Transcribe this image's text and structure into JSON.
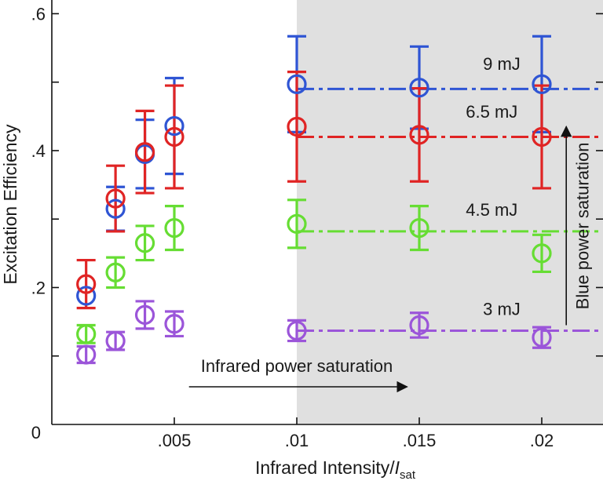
{
  "chart_data": {
    "type": "scatter",
    "title": "",
    "xlabel": "Infrared Intensity/",
    "xlabel_symbol": "I",
    "xlabel_subscript": "sat",
    "ylabel": "Excitation Efficiency",
    "xlim": [
      0,
      0.0225
    ],
    "ylim": [
      0,
      0.62
    ],
    "x_ticks": [
      {
        "value": 0,
        "label": "0"
      },
      {
        "value": 0.005,
        "label": ".005"
      },
      {
        "value": 0.01,
        "label": ".01"
      },
      {
        "value": 0.015,
        "label": ".015"
      },
      {
        "value": 0.02,
        "label": ".02"
      }
    ],
    "y_ticks": [
      {
        "value": 0.1,
        "label": ""
      },
      {
        "value": 0.2,
        "label": ".2"
      },
      {
        "value": 0.3,
        "label": ""
      },
      {
        "value": 0.4,
        "label": ".4"
      },
      {
        "value": 0.5,
        "label": ""
      },
      {
        "value": 0.6,
        "label": ".6"
      }
    ],
    "shaded_region": {
      "x_start": 0.01,
      "x_end": 0.0225,
      "color": "#e0e0e0"
    },
    "series": [
      {
        "name": "9 mJ",
        "color": "#2f55d4",
        "plateau": 0.49,
        "points": [
          {
            "x": 0.0014,
            "y": 0.188,
            "err": 0.0
          },
          {
            "x": 0.0026,
            "y": 0.315,
            "err": 0.032
          },
          {
            "x": 0.0038,
            "y": 0.395,
            "err": 0.05
          },
          {
            "x": 0.005,
            "y": 0.436,
            "err": 0.07
          },
          {
            "x": 0.01,
            "y": 0.497,
            "err": 0.07
          },
          {
            "x": 0.015,
            "y": 0.492,
            "err": 0.06
          },
          {
            "x": 0.02,
            "y": 0.497,
            "err": 0.07
          }
        ]
      },
      {
        "name": "6.5 mJ",
        "color": "#e02424",
        "plateau": 0.42,
        "points": [
          {
            "x": 0.0014,
            "y": 0.205,
            "err": 0.035
          },
          {
            "x": 0.0026,
            "y": 0.33,
            "err": 0.048
          },
          {
            "x": 0.0038,
            "y": 0.398,
            "err": 0.06
          },
          {
            "x": 0.005,
            "y": 0.42,
            "err": 0.075
          },
          {
            "x": 0.01,
            "y": 0.435,
            "err": 0.08
          },
          {
            "x": 0.015,
            "y": 0.423,
            "err": 0.068
          },
          {
            "x": 0.02,
            "y": 0.42,
            "err": 0.075
          }
        ]
      },
      {
        "name": "4.5 mJ",
        "color": "#66dd33",
        "plateau": 0.282,
        "points": [
          {
            "x": 0.0014,
            "y": 0.132,
            "err": 0.013
          },
          {
            "x": 0.0026,
            "y": 0.222,
            "err": 0.022
          },
          {
            "x": 0.0038,
            "y": 0.265,
            "err": 0.025
          },
          {
            "x": 0.005,
            "y": 0.287,
            "err": 0.032
          },
          {
            "x": 0.01,
            "y": 0.293,
            "err": 0.035
          },
          {
            "x": 0.015,
            "y": 0.287,
            "err": 0.032
          },
          {
            "x": 0.02,
            "y": 0.25,
            "err": 0.027
          }
        ]
      },
      {
        "name": "3 mJ",
        "color": "#9b55d9",
        "plateau": 0.137,
        "points": [
          {
            "x": 0.0014,
            "y": 0.102,
            "err": 0.012
          },
          {
            "x": 0.0026,
            "y": 0.122,
            "err": 0.013
          },
          {
            "x": 0.0038,
            "y": 0.16,
            "err": 0.02
          },
          {
            "x": 0.005,
            "y": 0.147,
            "err": 0.018
          },
          {
            "x": 0.01,
            "y": 0.137,
            "err": 0.015
          },
          {
            "x": 0.015,
            "y": 0.145,
            "err": 0.018
          },
          {
            "x": 0.02,
            "y": 0.127,
            "err": 0.015
          }
        ]
      }
    ],
    "annotations": [
      {
        "text": "9 mJ",
        "x": 0.0176,
        "y": 0.518,
        "anchor": "start"
      },
      {
        "text": "6.5 mJ",
        "x": 0.0169,
        "y": 0.448,
        "anchor": "start"
      },
      {
        "text": "4.5 mJ",
        "x": 0.0169,
        "y": 0.305,
        "anchor": "start"
      },
      {
        "text": "3 mJ",
        "x": 0.0176,
        "y": 0.16,
        "anchor": "start"
      }
    ],
    "arrows": [
      {
        "label": "Infrared power saturation",
        "from": [
          0.0056,
          0.055
        ],
        "to": [
          0.0145,
          0.055
        ],
        "label_at": [
          0.01,
          0.077
        ]
      },
      {
        "label": "Blue power saturation",
        "from": [
          0.021,
          0.145
        ],
        "to": [
          0.021,
          0.435
        ],
        "label_at": [
          0.0219,
          0.29
        ]
      }
    ]
  }
}
